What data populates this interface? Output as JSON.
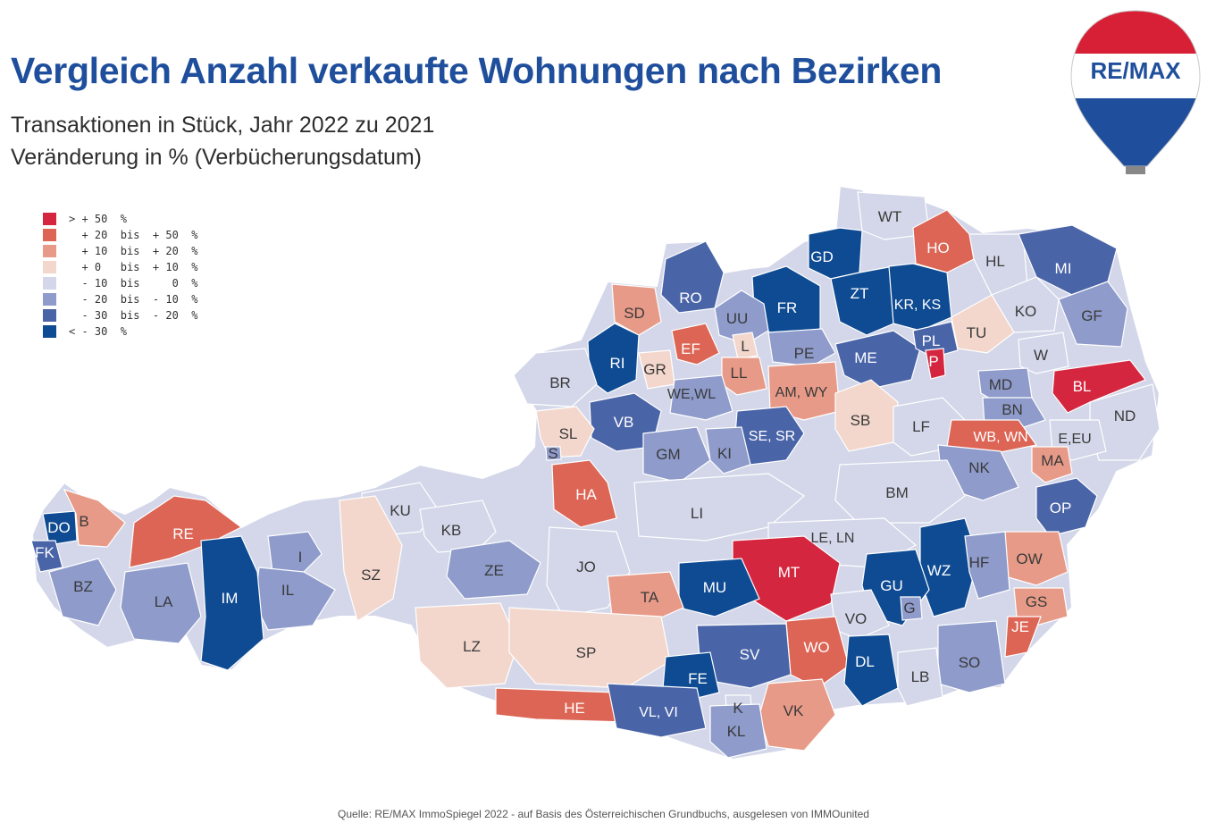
{
  "title": "Vergleich Anzahl verkaufte Wohnungen nach Bezirken",
  "subtitle_1": "Transaktionen in Stück, Jahr 2022 zu 2021",
  "subtitle_2": "Veränderung in % (Verbücherungsdatum)",
  "source": "Quelle: RE/MAX ImmoSpiegel 2022 - auf Basis des Österreichischen Grundbuchs, ausgelesen von IMMOunited",
  "logo_text": "RE/MAX",
  "legend": [
    {
      "label": "> + 50  %",
      "color": "#d4263f"
    },
    {
      "label": "  + 20  bis  + 50  %",
      "color": "#dc6555"
    },
    {
      "label": "  + 10  bis  + 20  %",
      "color": "#e79a87"
    },
    {
      "label": "  + 0   bis  + 10  %",
      "color": "#f3d7cd"
    },
    {
      "label": "  - 10  bis     0  %",
      "color": "#d3d7e9"
    },
    {
      "label": "  - 20  bis  - 10  %",
      "color": "#8e9bcb"
    },
    {
      "label": "  - 30  bis  - 20  %",
      "color": "#4a64a8"
    },
    {
      "label": "< - 30  %",
      "color": "#0f4b93"
    }
  ],
  "districts": [
    {
      "code": "WT",
      "color": "#d3d7e9"
    },
    {
      "code": "GD",
      "color": "#0f4b93"
    },
    {
      "code": "HO",
      "color": "#dc6555"
    },
    {
      "code": "HL",
      "color": "#d3d7e9"
    },
    {
      "code": "MI",
      "color": "#4a64a8"
    },
    {
      "code": "ZT",
      "color": "#0f4b93"
    },
    {
      "code": "KR, KS",
      "color": "#0f4b93"
    },
    {
      "code": "FR",
      "color": "#0f4b93"
    },
    {
      "code": "RO",
      "color": "#4a64a8"
    },
    {
      "code": "UU",
      "color": "#8e9bcb"
    },
    {
      "code": "SD",
      "color": "#e79a87"
    },
    {
      "code": "KO",
      "color": "#d3d7e9"
    },
    {
      "code": "GF",
      "color": "#8e9bcb"
    },
    {
      "code": "TU",
      "color": "#f3d7cd"
    },
    {
      "code": "EF",
      "color": "#dc6555"
    },
    {
      "code": "L",
      "color": "#f3d7cd"
    },
    {
      "code": "PE",
      "color": "#8e9bcb"
    },
    {
      "code": "ME",
      "color": "#4a64a8"
    },
    {
      "code": "PL",
      "color": "#4a64a8"
    },
    {
      "code": "P",
      "color": "#d4263f"
    },
    {
      "code": "W",
      "color": "#d3d7e9"
    },
    {
      "code": "RI",
      "color": "#0f4b93"
    },
    {
      "code": "GR",
      "color": "#f3d7cd"
    },
    {
      "code": "LL",
      "color": "#e79a87"
    },
    {
      "code": "BR",
      "color": "#d3d7e9"
    },
    {
      "code": "WE,WL",
      "color": "#8e9bcb"
    },
    {
      "code": "AM, WY",
      "color": "#e79a87"
    },
    {
      "code": "MD",
      "color": "#8e9bcb"
    },
    {
      "code": "BL",
      "color": "#d4263f"
    },
    {
      "code": "SB",
      "color": "#f3d7cd"
    },
    {
      "code": "BN",
      "color": "#8e9bcb"
    },
    {
      "code": "ND",
      "color": "#d3d7e9"
    },
    {
      "code": "VB",
      "color": "#4a64a8"
    },
    {
      "code": "LF",
      "color": "#d3d7e9"
    },
    {
      "code": "SL",
      "color": "#f3d7cd"
    },
    {
      "code": "SE, SR",
      "color": "#4a64a8"
    },
    {
      "code": "WB, WN",
      "color": "#dc6555"
    },
    {
      "code": "E,EU",
      "color": "#d3d7e9"
    },
    {
      "code": "S",
      "color": "#8e9bcb"
    },
    {
      "code": "GM",
      "color": "#8e9bcb"
    },
    {
      "code": "KI",
      "color": "#8e9bcb"
    },
    {
      "code": "MA",
      "color": "#e79a87"
    },
    {
      "code": "NK",
      "color": "#8e9bcb"
    },
    {
      "code": "HA",
      "color": "#dc6555"
    },
    {
      "code": "BM",
      "color": "#d3d7e9"
    },
    {
      "code": "KU",
      "color": "#d3d7e9"
    },
    {
      "code": "DO",
      "color": "#0f4b93"
    },
    {
      "code": "B",
      "color": "#e79a87"
    },
    {
      "code": "RE",
      "color": "#dc6555"
    },
    {
      "code": "LI",
      "color": "#d3d7e9"
    },
    {
      "code": "OP",
      "color": "#4a64a8"
    },
    {
      "code": "KB",
      "color": "#d3d7e9"
    },
    {
      "code": "FK",
      "color": "#4a64a8"
    },
    {
      "code": "LE, LN",
      "color": "#d3d7e9"
    },
    {
      "code": "I",
      "color": "#8e9bcb"
    },
    {
      "code": "OW",
      "color": "#e79a87"
    },
    {
      "code": "ZE",
      "color": "#8e9bcb"
    },
    {
      "code": "JO",
      "color": "#d3d7e9"
    },
    {
      "code": "MT",
      "color": "#d4263f"
    },
    {
      "code": "WZ",
      "color": "#0f4b93"
    },
    {
      "code": "HF",
      "color": "#8e9bcb"
    },
    {
      "code": "SZ",
      "color": "#f3d7cd"
    },
    {
      "code": "BZ",
      "color": "#8e9bcb"
    },
    {
      "code": "IL",
      "color": "#8e9bcb"
    },
    {
      "code": "MU",
      "color": "#0f4b93"
    },
    {
      "code": "GU",
      "color": "#0f4b93"
    },
    {
      "code": "LA",
      "color": "#8e9bcb"
    },
    {
      "code": "IM",
      "color": "#0f4b93"
    },
    {
      "code": "TA",
      "color": "#e79a87"
    },
    {
      "code": "GS",
      "color": "#e79a87"
    },
    {
      "code": "G",
      "color": "#8e9bcb"
    },
    {
      "code": "VO",
      "color": "#d3d7e9"
    },
    {
      "code": "JE",
      "color": "#dc6555"
    },
    {
      "code": "LZ",
      "color": "#f3d7cd"
    },
    {
      "code": "SP",
      "color": "#f3d7cd"
    },
    {
      "code": "WO",
      "color": "#dc6555"
    },
    {
      "code": "SV",
      "color": "#4a64a8"
    },
    {
      "code": "DL",
      "color": "#0f4b93"
    },
    {
      "code": "SO",
      "color": "#8e9bcb"
    },
    {
      "code": "FE",
      "color": "#0f4b93"
    },
    {
      "code": "LB",
      "color": "#d3d7e9"
    },
    {
      "code": "HE",
      "color": "#dc6555"
    },
    {
      "code": "VL, VI",
      "color": "#4a64a8"
    },
    {
      "code": "K",
      "color": "#d3d7e9"
    },
    {
      "code": "VK",
      "color": "#e79a87"
    },
    {
      "code": "KL",
      "color": "#8e9bcb"
    }
  ]
}
